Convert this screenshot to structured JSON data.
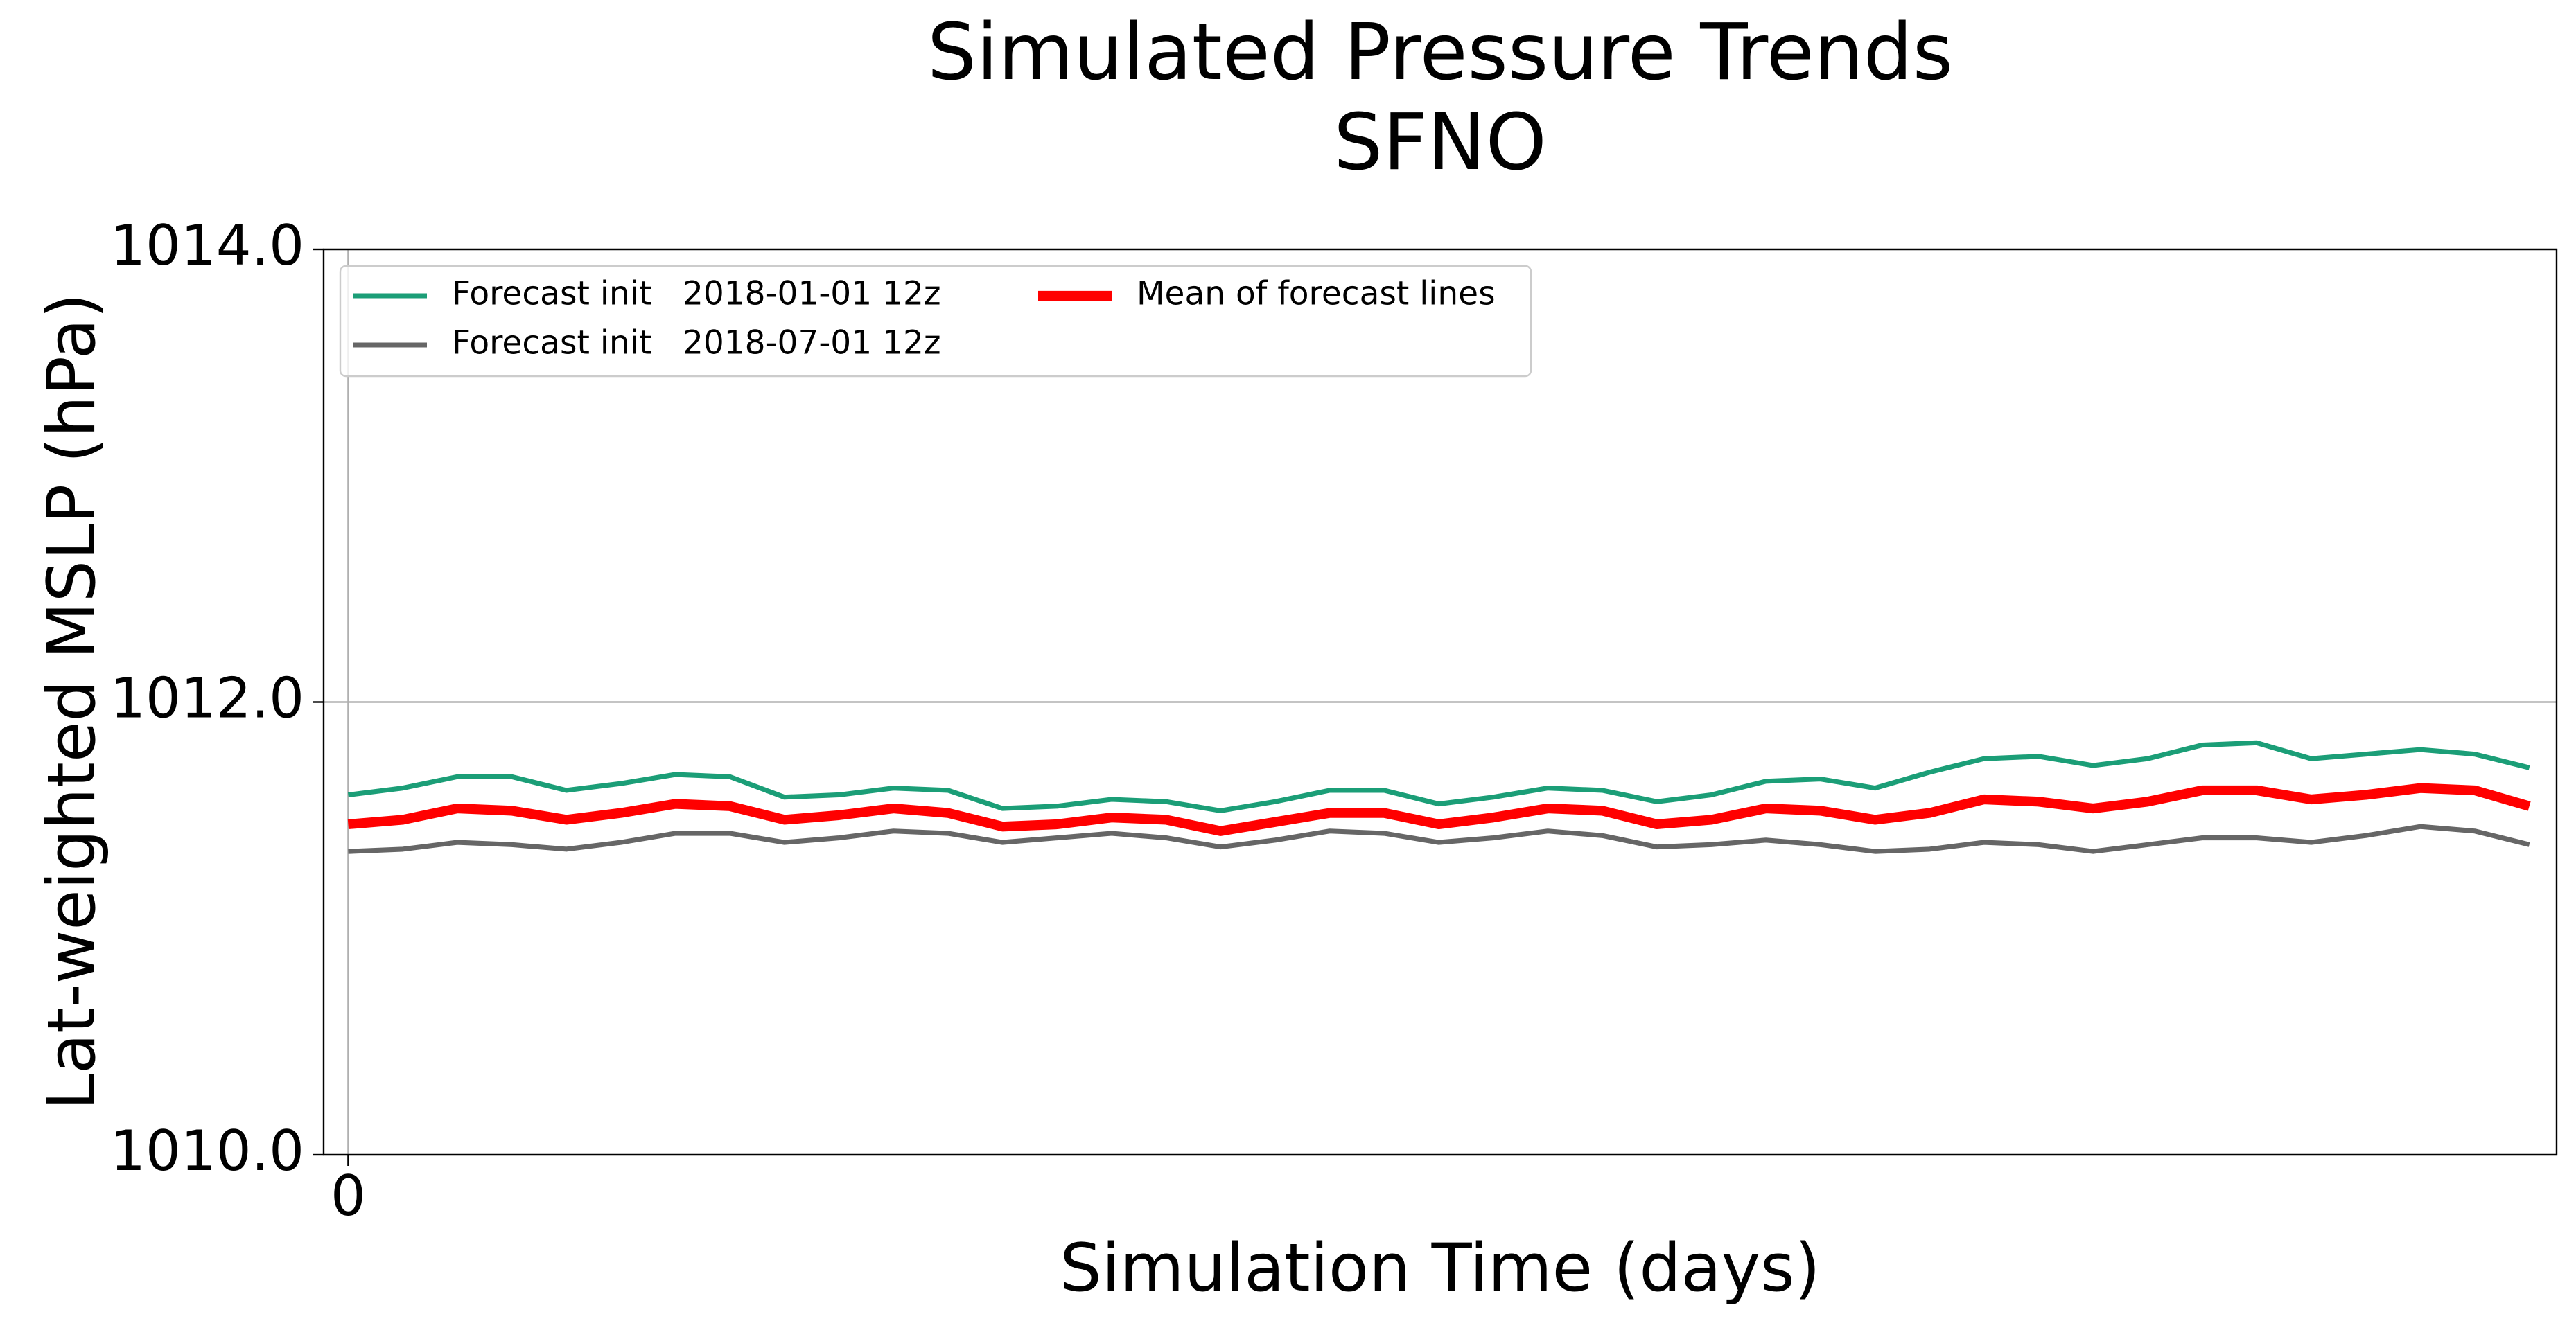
{
  "chart_data": {
    "type": "line",
    "title": "Simulated Pressure Trends",
    "subtitle": "SFNO",
    "xlabel": "Simulation Time (days)",
    "ylabel": "Lat-weighted MSLP (hPa)",
    "x": [
      0,
      1,
      2,
      3,
      4,
      5,
      6,
      7,
      8,
      9,
      10,
      11,
      12,
      13,
      14,
      15,
      16,
      17,
      18,
      19,
      20,
      21,
      22,
      23,
      24,
      25,
      26,
      27,
      28,
      29,
      30,
      31,
      32,
      33,
      34,
      35,
      36,
      37,
      38,
      39,
      40
    ],
    "series": [
      {
        "name": "Forecast init   2018-01-01 12z",
        "color": "#1b9e77",
        "width": 3,
        "values": [
          1011.59,
          1011.62,
          1011.67,
          1011.67,
          1011.61,
          1011.64,
          1011.68,
          1011.67,
          1011.58,
          1011.59,
          1011.62,
          1011.61,
          1011.53,
          1011.54,
          1011.57,
          1011.56,
          1011.52,
          1011.56,
          1011.61,
          1011.61,
          1011.55,
          1011.58,
          1011.62,
          1011.61,
          1011.56,
          1011.59,
          1011.65,
          1011.66,
          1011.62,
          1011.69,
          1011.75,
          1011.76,
          1011.72,
          1011.75,
          1011.81,
          1011.82,
          1011.75,
          1011.77,
          1011.79,
          1011.77,
          1011.71
        ]
      },
      {
        "name": "Forecast init   2018-07-01 12z",
        "color": "#666666",
        "width": 3,
        "values": [
          1011.34,
          1011.35,
          1011.38,
          1011.37,
          1011.35,
          1011.38,
          1011.42,
          1011.42,
          1011.38,
          1011.4,
          1011.43,
          1011.42,
          1011.38,
          1011.4,
          1011.42,
          1011.4,
          1011.36,
          1011.39,
          1011.43,
          1011.42,
          1011.38,
          1011.4,
          1011.43,
          1011.41,
          1011.36,
          1011.37,
          1011.39,
          1011.37,
          1011.34,
          1011.35,
          1011.38,
          1011.37,
          1011.34,
          1011.37,
          1011.4,
          1011.4,
          1011.38,
          1011.41,
          1011.45,
          1011.43,
          1011.37
        ]
      },
      {
        "name": "Mean of forecast lines",
        "color": "#ff0000",
        "width": 6,
        "values": [
          1011.46,
          1011.48,
          1011.53,
          1011.52,
          1011.48,
          1011.51,
          1011.55,
          1011.54,
          1011.48,
          1011.5,
          1011.53,
          1011.51,
          1011.45,
          1011.46,
          1011.49,
          1011.48,
          1011.43,
          1011.47,
          1011.51,
          1011.51,
          1011.46,
          1011.49,
          1011.53,
          1011.52,
          1011.46,
          1011.48,
          1011.53,
          1011.52,
          1011.48,
          1011.51,
          1011.57,
          1011.56,
          1011.53,
          1011.56,
          1011.61,
          1011.61,
          1011.57,
          1011.59,
          1011.62,
          1011.61,
          1011.54
        ]
      }
    ],
    "xlim": [
      -0.45,
      40.5
    ],
    "xticks": [
      0
    ],
    "ylim": [
      1010,
      1014
    ],
    "yticks": [
      {
        "value": 1010,
        "label": "1010.0"
      },
      {
        "value": 1012,
        "label": "1012.0"
      },
      {
        "value": 1014,
        "label": "1014.0"
      }
    ],
    "grid": true,
    "legend": "upper left"
  }
}
